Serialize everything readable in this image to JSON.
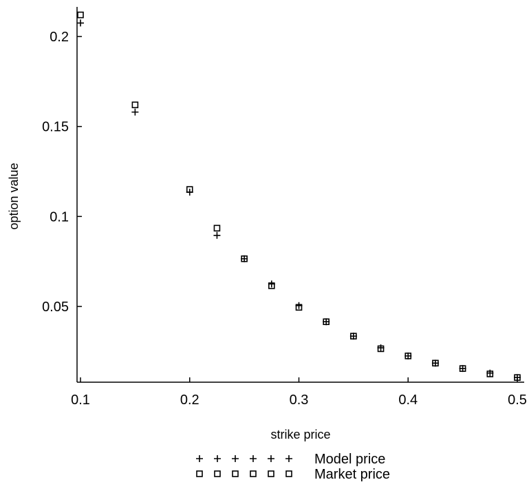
{
  "chart_data": {
    "type": "scatter",
    "xlabel": "strike price",
    "ylabel": "option value",
    "xlim": [
      0.1,
      0.5
    ],
    "ylim": [
      0.0095,
      0.215
    ],
    "xticks": [
      "0.1",
      "0.2",
      "0.3",
      "0.4",
      "0.5"
    ],
    "yticks": [
      "0.05",
      "0.1",
      "0.15",
      "0.2"
    ],
    "grid": false,
    "legend_position": "bottom",
    "series": [
      {
        "name": "Model price",
        "marker": "plus",
        "color": "#000000",
        "x": [
          0.1,
          0.15,
          0.2,
          0.225,
          0.25,
          0.275,
          0.3,
          0.325,
          0.35,
          0.375,
          0.4,
          0.425,
          0.45,
          0.475,
          0.5
        ],
        "y": [
          0.2075,
          0.158,
          0.1135,
          0.0895,
          0.0765,
          0.0625,
          0.0505,
          0.0415,
          0.0335,
          0.027,
          0.0225,
          0.0185,
          0.0155,
          0.013,
          0.0105
        ]
      },
      {
        "name": "Market price",
        "marker": "square",
        "color": "#000000",
        "x": [
          0.1,
          0.15,
          0.2,
          0.225,
          0.25,
          0.275,
          0.3,
          0.325,
          0.35,
          0.375,
          0.4,
          0.425,
          0.45,
          0.475,
          0.5
        ],
        "y": [
          0.212,
          0.162,
          0.115,
          0.0935,
          0.0765,
          0.0615,
          0.0495,
          0.0415,
          0.0335,
          0.0265,
          0.0225,
          0.0185,
          0.0155,
          0.0125,
          0.0105
        ]
      }
    ]
  }
}
